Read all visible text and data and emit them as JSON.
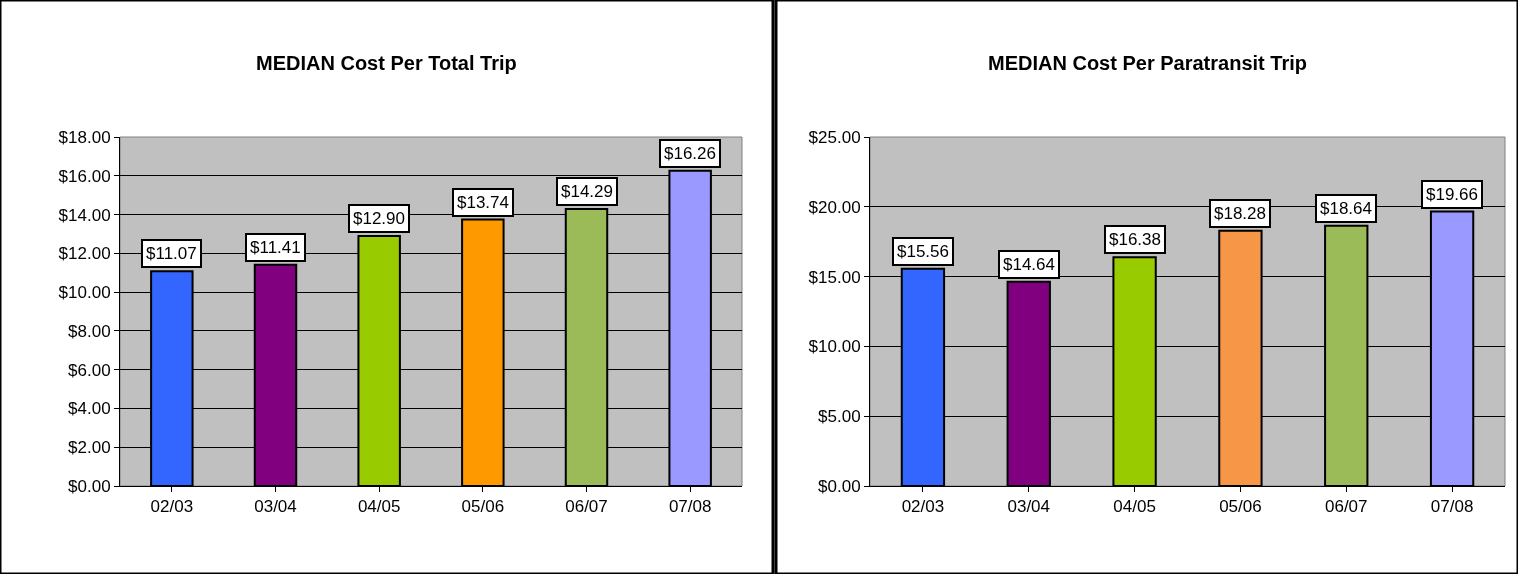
{
  "chart_data": [
    {
      "type": "bar",
      "title": "MEDIAN Cost Per Total Trip",
      "categories": [
        "02/03",
        "03/04",
        "04/05",
        "05/06",
        "06/07",
        "07/08"
      ],
      "values": [
        11.07,
        11.41,
        12.9,
        13.74,
        14.29,
        16.26
      ],
      "colors": [
        "#3366ff",
        "#800080",
        "#99cc00",
        "#ff9900",
        "#9bbb59",
        "#9999ff"
      ],
      "value_labels": [
        "$11.07",
        "$11.41",
        "$12.90",
        "$13.74",
        "$14.29",
        "$16.26"
      ],
      "ylim": [
        0,
        18
      ],
      "yticks": [
        {
          "value": 0,
          "label": "$0.00"
        },
        {
          "value": 2,
          "label": "$2.00"
        },
        {
          "value": 4,
          "label": "$4.00"
        },
        {
          "value": 6,
          "label": "$6.00"
        },
        {
          "value": 8,
          "label": "$8.00"
        },
        {
          "value": 10,
          "label": "$10.00"
        },
        {
          "value": 12,
          "label": "$12.00"
        },
        {
          "value": 14,
          "label": "$14.00"
        },
        {
          "value": 16,
          "label": "$16.00"
        },
        {
          "value": 18,
          "label": "$18.00"
        }
      ],
      "grid": "y"
    },
    {
      "type": "bar",
      "title": "MEDIAN Cost Per Paratransit Trip",
      "categories": [
        "02/03",
        "03/04",
        "04/05",
        "05/06",
        "06/07",
        "07/08"
      ],
      "values": [
        15.56,
        14.64,
        16.38,
        18.28,
        18.64,
        19.66
      ],
      "colors": [
        "#3366ff",
        "#800080",
        "#99cc00",
        "#f79646",
        "#9bbb59",
        "#9999ff"
      ],
      "value_labels": [
        "$15.56",
        "$14.64",
        "$16.38",
        "$18.28",
        "$18.64",
        "$19.66"
      ],
      "ylim": [
        0,
        25
      ],
      "yticks": [
        {
          "value": 0,
          "label": "$0.00"
        },
        {
          "value": 5,
          "label": "$5.00"
        },
        {
          "value": 10,
          "label": "$10.00"
        },
        {
          "value": 15,
          "label": "$15.00"
        },
        {
          "value": 20,
          "label": "$20.00"
        },
        {
          "value": 25,
          "label": "$25.00"
        }
      ],
      "grid": "y"
    }
  ]
}
